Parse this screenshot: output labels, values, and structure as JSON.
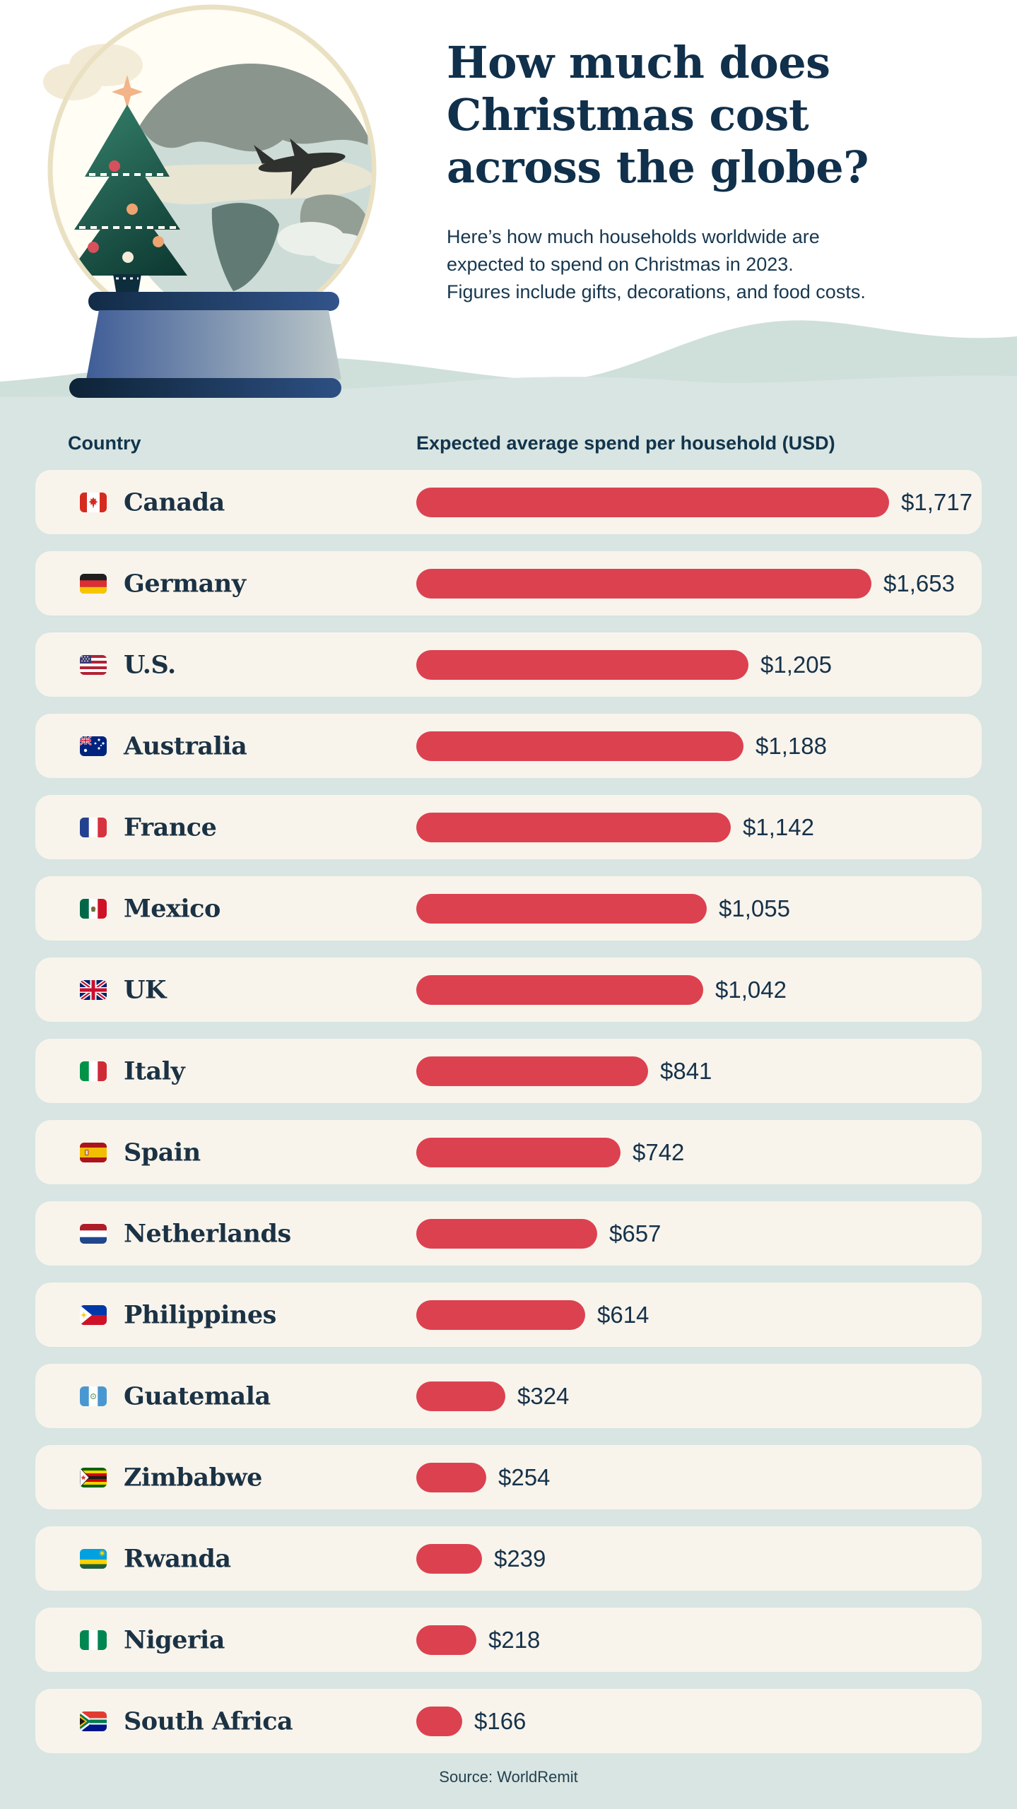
{
  "header": {
    "title": "How much does\nChristmas cost\nacross the globe?",
    "subtitle": "Here’s how much households worldwide are\nexpected to spend on Christmas in 2023.\nFigures include gifts, decorations, and food costs."
  },
  "table": {
    "country_header": "Country",
    "value_header": "Expected average spend per household (USD)"
  },
  "footer": {
    "source": "Source: WorldRemit"
  },
  "illustration": {
    "description": "snow globe containing the Earth, a Christmas tree and an airplane, on a blue base"
  },
  "colors": {
    "page_background": "#d8e5e2",
    "wave": "#cfdfda",
    "header_background": "#ffffff",
    "card_background": "#f8f4ec",
    "bar_red": "#dc4150",
    "navy_text": "#16324a"
  },
  "chart_data": {
    "type": "bar",
    "orientation": "horizontal",
    "title": "How much does Christmas cost across the globe?",
    "xlabel": "Expected average spend per household (USD)",
    "ylabel": "Country",
    "xlim": [
      0,
      1717
    ],
    "grid": false,
    "legend_position": "none",
    "bar_color": "#dc4150",
    "categories": [
      "Canada",
      "Germany",
      "U.S.",
      "Australia",
      "France",
      "Mexico",
      "UK",
      "Italy",
      "Spain",
      "Netherlands",
      "Philippines",
      "Guatemala",
      "Zimbabwe",
      "Rwanda",
      "Nigeria",
      "South Africa"
    ],
    "values": [
      1717,
      1653,
      1205,
      1188,
      1142,
      1055,
      1042,
      841,
      742,
      657,
      614,
      324,
      254,
      239,
      218,
      166
    ],
    "value_labels": [
      "$1,717",
      "$1,653",
      "$1,205",
      "$1,188",
      "$1,142",
      "$1,055",
      "$1,042",
      "$841",
      "$742",
      "$657",
      "$614",
      "$324",
      "$254",
      "$239",
      "$218",
      "$166"
    ],
    "flags": [
      "canada",
      "germany",
      "us",
      "australia",
      "france",
      "mexico",
      "uk",
      "italy",
      "spain",
      "netherlands",
      "philippines",
      "guatemala",
      "zimbabwe",
      "rwanda",
      "nigeria",
      "south-africa"
    ]
  }
}
